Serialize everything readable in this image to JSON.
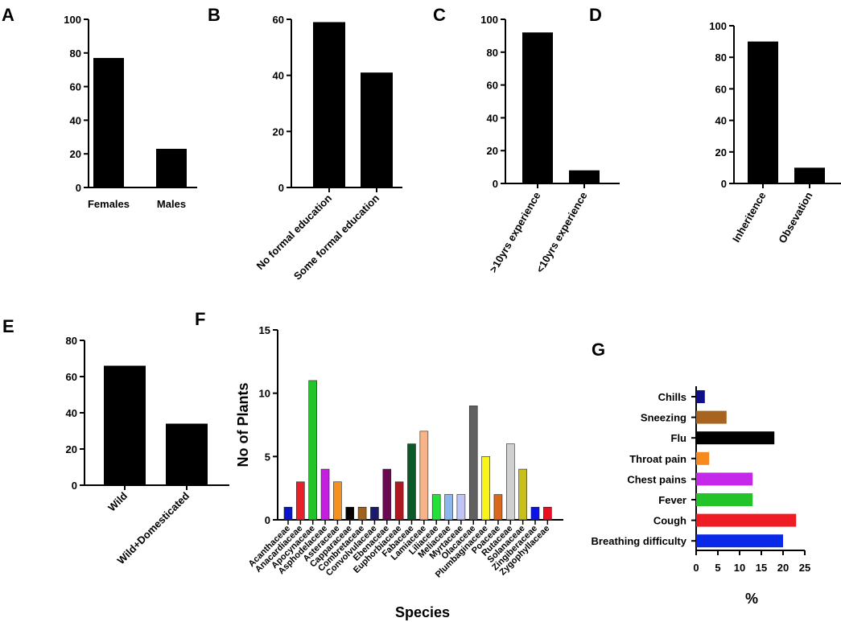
{
  "chart_data": [
    {
      "panel": "A",
      "type": "bar",
      "categories": [
        "Females",
        "Males"
      ],
      "values": [
        77,
        23
      ],
      "ylim": [
        0,
        100
      ],
      "yticks": [
        0,
        20,
        40,
        60,
        80,
        100
      ],
      "xlabel": "",
      "ylabel": "",
      "bar_color": "#000000"
    },
    {
      "panel": "B",
      "type": "bar",
      "categories": [
        "No formal education",
        "Some formal education"
      ],
      "values": [
        59,
        41
      ],
      "ylim": [
        0,
        60
      ],
      "yticks": [
        0,
        20,
        40,
        60
      ],
      "xlabel": "",
      "ylabel": "",
      "bar_color": "#000000"
    },
    {
      "panel": "C",
      "type": "bar",
      "categories": [
        ">10yrs experience",
        "<10yrs experience"
      ],
      "values": [
        92,
        8
      ],
      "ylim": [
        0,
        100
      ],
      "yticks": [
        0,
        20,
        40,
        60,
        80,
        100
      ],
      "xlabel": "",
      "ylabel": "",
      "bar_color": "#000000"
    },
    {
      "panel": "D",
      "type": "bar",
      "categories": [
        "Inheritence",
        "Obsevation"
      ],
      "values": [
        90,
        10
      ],
      "ylim": [
        0,
        100
      ],
      "yticks": [
        0,
        20,
        40,
        60,
        80,
        100
      ],
      "xlabel": "",
      "ylabel": "",
      "bar_color": "#000000"
    },
    {
      "panel": "E",
      "type": "bar",
      "categories": [
        "Wild",
        "Wild+Domesticated"
      ],
      "values": [
        66,
        34
      ],
      "ylim": [
        0,
        80
      ],
      "yticks": [
        0,
        20,
        40,
        60,
        80
      ],
      "xlabel": "",
      "ylabel": "",
      "bar_color": "#000000"
    },
    {
      "panel": "F",
      "type": "bar",
      "categories": [
        "Acanthaceae",
        "Anacardiaceae",
        "Apocynaceae",
        "Asphodelaceae",
        "Asteraceae",
        "Capparaceae",
        "Combretaceae",
        "Convolvulaceae",
        "Ebenaceae",
        "Euphorbiaceae",
        "Fabaceae",
        "Lamiaceae",
        "Liliaceae",
        "Meliaceae",
        "Myrtaceae",
        "Olacaceae",
        "Plumbaginaceae",
        "Poaceae",
        "Rutaceae",
        "Solanaceae",
        "Zingiberaceae",
        "Zygophyllaceae"
      ],
      "values": [
        1,
        3,
        11,
        4,
        3,
        1,
        1,
        1,
        4,
        3,
        6,
        7,
        2,
        2,
        2,
        9,
        5,
        2,
        6,
        4,
        1,
        1
      ],
      "colors": [
        "#0a14c8",
        "#e8202a",
        "#22c42a",
        "#c41fe0",
        "#f5921e",
        "#000000",
        "#a0601e",
        "#1a1a70",
        "#6a0a50",
        "#b01820",
        "#0a5a28",
        "#f7b48a",
        "#26e03a",
        "#8ab8ee",
        "#c0c4f4",
        "#606060",
        "#f7f51a",
        "#d8681e",
        "#d0d0d0",
        "#c8c018",
        "#0a14e8",
        "#e81020"
      ],
      "ylim": [
        0,
        15
      ],
      "yticks": [
        0,
        5,
        10,
        15
      ],
      "xlabel": "Species",
      "ylabel": "No of Plants"
    },
    {
      "panel": "G",
      "type": "bar",
      "orientation": "horizontal",
      "categories": [
        "Chills",
        "Sneezing",
        "Flu",
        "Throat pain",
        "Chest pains",
        "Fever",
        "Cough",
        "Breathing difficulty"
      ],
      "values": [
        2,
        7,
        18,
        3,
        13,
        13,
        23,
        20
      ],
      "colors": [
        "#10108a",
        "#a8641e",
        "#000000",
        "#f78a1e",
        "#c428e8",
        "#22c42a",
        "#f01c24",
        "#0a28e8"
      ],
      "xlim": [
        0,
        25
      ],
      "xticks": [
        0,
        5,
        10,
        15,
        20,
        25
      ],
      "xlabel": "%",
      "ylabel": ""
    }
  ]
}
